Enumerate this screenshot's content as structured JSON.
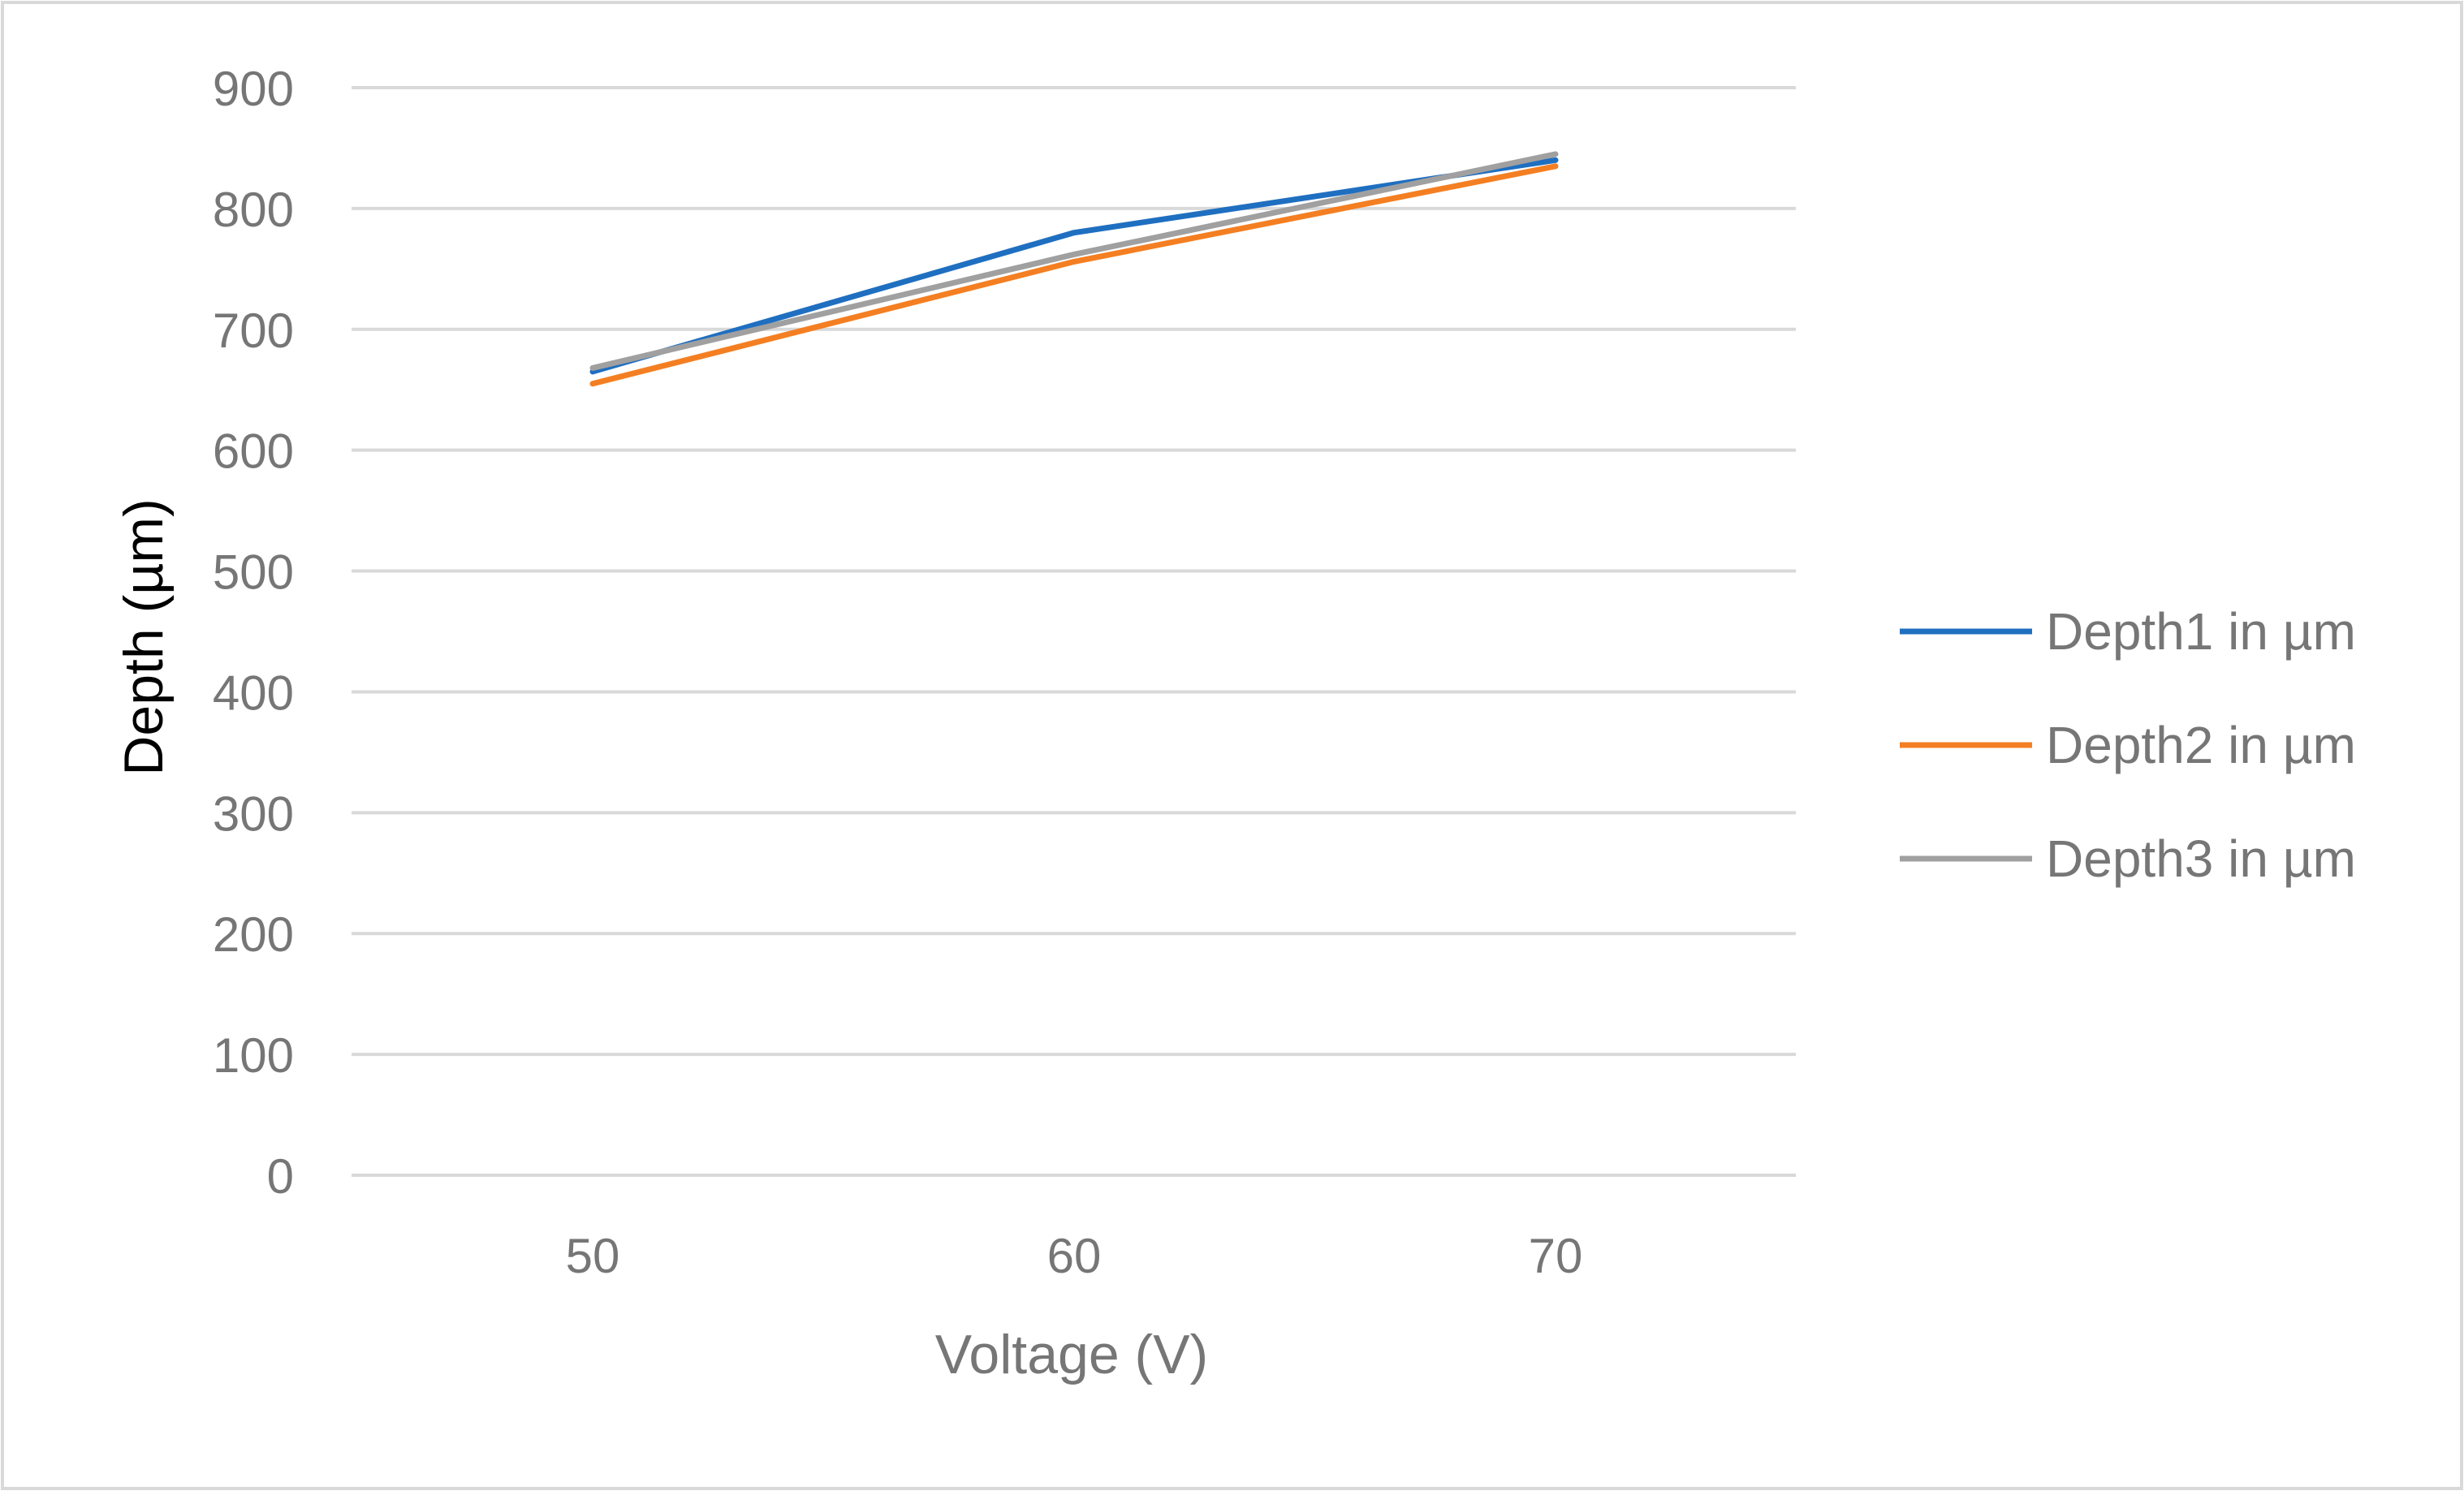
{
  "chart_data": {
    "type": "line",
    "title": "",
    "xlabel": "Voltage (V)",
    "ylabel": "Depth  (µm)",
    "categories": [
      "50",
      "60",
      "70"
    ],
    "x": [
      50,
      60,
      70
    ],
    "ylim": [
      0,
      900
    ],
    "yticks": [
      0,
      100,
      200,
      300,
      400,
      500,
      600,
      700,
      800,
      900
    ],
    "grid": true,
    "legend_position": "right",
    "series": [
      {
        "name": "Depth1 in µm",
        "color": "#1F6FC1",
        "values": [
          665,
          780,
          840
        ]
      },
      {
        "name": "Depth2 in µm",
        "color": "#F47F22",
        "values": [
          655,
          756,
          835
        ]
      },
      {
        "name": "Depth3 in µm",
        "color": "#A0A0A0",
        "values": [
          668,
          762,
          845
        ]
      }
    ],
    "colors": {
      "grid": "#D9D9D9",
      "tick_text": "#767676",
      "axis_title": "#000000",
      "frame": "#D9D9D9"
    }
  }
}
